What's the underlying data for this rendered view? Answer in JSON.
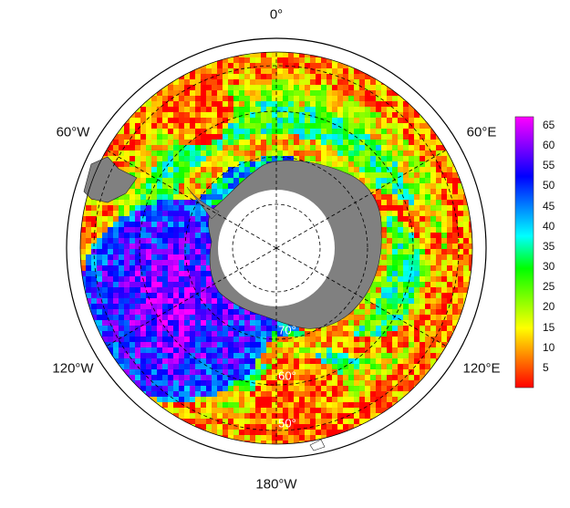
{
  "map": {
    "projection": "south-polar-stereographic",
    "lon_labels": {
      "top": "0°",
      "upper_left": "60°W",
      "upper_right": "60°E",
      "lower_left": "120°W",
      "lower_right": "120°E",
      "bottom": "180°W"
    },
    "lat_labels": [
      "70°",
      "60°",
      "50°"
    ],
    "land_color": "#808080",
    "antarctica_label_color": "#ffffff"
  },
  "colorbar": {
    "ticks": [
      "65",
      "60",
      "55",
      "50",
      "45",
      "40",
      "35",
      "30",
      "25",
      "20",
      "15",
      "10",
      "5"
    ],
    "min": 0,
    "max": 67,
    "colormap": [
      "#ff0000",
      "#ff7f00",
      "#ffff00",
      "#80ff00",
      "#00ff00",
      "#00ffff",
      "#0080ff",
      "#0000ff",
      "#8000ff",
      "#ff00ff"
    ]
  }
}
